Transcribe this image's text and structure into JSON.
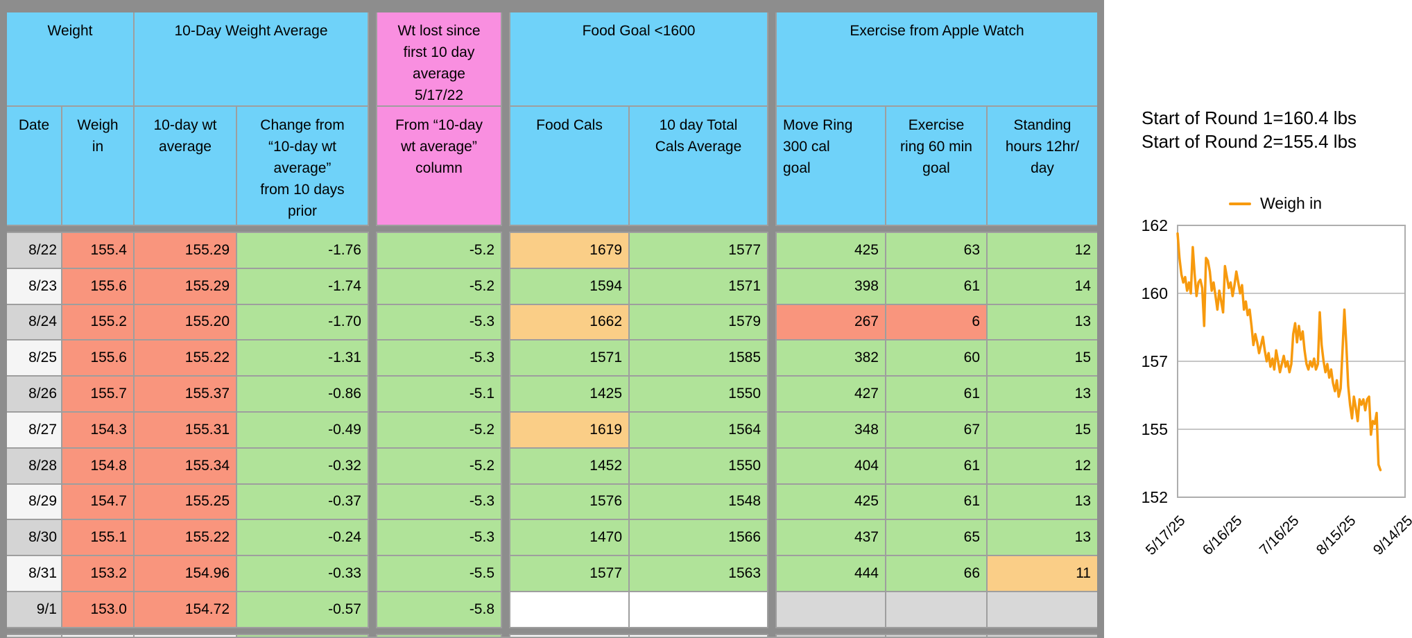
{
  "table": {
    "groups": [
      {
        "label": "Weight"
      },
      {
        "label": "10-Day Weight Average"
      },
      {
        "label": "Wt lost since\nfirst 10 day\naverage\n5/17/22"
      },
      {
        "label": "Food Goal <1600"
      },
      {
        "label": "Exercise from Apple Watch"
      }
    ],
    "columns": [
      {
        "key": "date",
        "label": "Date"
      },
      {
        "key": "weigh-in",
        "label": "Weigh\nin"
      },
      {
        "key": "10day-avg",
        "label": "10-day wt\naverage"
      },
      {
        "key": "change",
        "label": "Change from\n“10-day wt\naverage”\nfrom 10 days\nprior"
      },
      {
        "key": "wt-lost",
        "label": "From “10-day\nwt average”\ncolumn"
      },
      {
        "key": "food-cals",
        "label": "Food Cals"
      },
      {
        "key": "cals-avg",
        "label": "10 day Total\nCals Average"
      },
      {
        "key": "move-ring",
        "label": "Move Ring\n300 cal\ngoal"
      },
      {
        "key": "exercise-ring",
        "label": "Exercise\nring 60 min\ngoal"
      },
      {
        "key": "standing-hours",
        "label": "Standing\nhours 12hr/\nday"
      }
    ],
    "rows": [
      {
        "cells": [
          "8/22",
          "155.4",
          "155.29",
          "-1.76",
          "-5.2",
          "1679",
          "1577",
          "425",
          "63",
          "12"
        ],
        "overrides": {
          "5": "orange"
        }
      },
      {
        "cells": [
          "8/23",
          "155.6",
          "155.29",
          "-1.74",
          "-5.2",
          "1594",
          "1571",
          "398",
          "61",
          "14"
        ],
        "overrides": {}
      },
      {
        "cells": [
          "8/24",
          "155.2",
          "155.20",
          "-1.70",
          "-5.3",
          "1662",
          "1579",
          "267",
          "6",
          "13"
        ],
        "overrides": {
          "5": "orange",
          "7": "red",
          "8": "red"
        }
      },
      {
        "cells": [
          "8/25",
          "155.6",
          "155.22",
          "-1.31",
          "-5.3",
          "1571",
          "1585",
          "382",
          "60",
          "15"
        ],
        "overrides": {}
      },
      {
        "cells": [
          "8/26",
          "155.7",
          "155.37",
          "-0.86",
          "-5.1",
          "1425",
          "1550",
          "427",
          "61",
          "13"
        ],
        "overrides": {}
      },
      {
        "cells": [
          "8/27",
          "154.3",
          "155.31",
          "-0.49",
          "-5.2",
          "1619",
          "1564",
          "348",
          "67",
          "15"
        ],
        "overrides": {
          "5": "orange"
        }
      },
      {
        "cells": [
          "8/28",
          "154.8",
          "155.34",
          "-0.32",
          "-5.2",
          "1452",
          "1550",
          "404",
          "61",
          "12"
        ],
        "overrides": {}
      },
      {
        "cells": [
          "8/29",
          "154.7",
          "155.25",
          "-0.37",
          "-5.3",
          "1576",
          "1548",
          "425",
          "61",
          "13"
        ],
        "overrides": {}
      },
      {
        "cells": [
          "8/30",
          "155.1",
          "155.22",
          "-0.24",
          "-5.3",
          "1470",
          "1566",
          "437",
          "65",
          "13"
        ],
        "overrides": {}
      },
      {
        "cells": [
          "8/31",
          "153.2",
          "154.96",
          "-0.33",
          "-5.5",
          "1577",
          "1563",
          "444",
          "66",
          "11"
        ],
        "overrides": {
          "9": "orange"
        }
      },
      {
        "cells": [
          "9/1",
          "153.0",
          "154.72",
          "-0.57",
          "-5.8",
          "",
          "",
          "",
          "",
          ""
        ],
        "overrides": {
          "5": "white",
          "6": "white",
          "7": "egray",
          "8": "egray",
          "9": "egray"
        }
      }
    ],
    "colors": {
      "header_cyan": "#6FD2F9",
      "header_pink": "#F98FE0",
      "salmon": "#F9957D",
      "green": "#B0E399",
      "orange": "#FACE87",
      "red": "#F9957D",
      "white": "#FFFFFF",
      "egray": "#D8D8D8",
      "date_dark": "#D4D4D4",
      "date_light": "#F5F5F5"
    },
    "sliver_colors": [
      "#F2F2F2",
      "#FFFFFF",
      "#FFFFFF",
      "#B0E399",
      "#B0E399",
      "#FFFFFF",
      "#FFFFFF",
      "#D8D8D8",
      "#D8D8D8",
      "#D8D8D8"
    ]
  },
  "chart_data": {
    "type": "line",
    "legend": "Weigh in",
    "line_color": "#F79A0E",
    "annotations": [
      "Start of Round 1=160.4 lbs",
      "Start of Round 2=155.4 lbs"
    ],
    "x_tick_labels": [
      "5/17/25",
      "6/16/25",
      "7/16/25",
      "8/15/25",
      "9/14/25"
    ],
    "y_tick_labels": [
      "162",
      "160",
      "157",
      "155",
      "152"
    ],
    "y_range": [
      152,
      162
    ],
    "x_axis_span_days": 120,
    "values_start_date": "5/17/25",
    "interval": "daily",
    "grid": true,
    "legend_position": "top",
    "values": [
      161.7,
      160.8,
      160.2,
      159.9,
      160.1,
      159.6,
      159.9,
      159.5,
      161.2,
      160.2,
      159.4,
      159.9,
      160.0,
      159.7,
      158.3,
      160.8,
      160.7,
      160.3,
      159.6,
      159.9,
      159.4,
      158.9,
      159.6,
      159.2,
      158.8,
      160.5,
      160.1,
      159.7,
      159.9,
      159.4,
      159.8,
      160.3,
      159.9,
      159.5,
      159.8,
      158.9,
      159.2,
      158.7,
      158.9,
      158.3,
      157.6,
      158.0,
      157.7,
      157.3,
      157.6,
      157.9,
      157.4,
      157.0,
      157.3,
      156.8,
      157.1,
      156.7,
      157.4,
      157.0,
      156.6,
      156.9,
      157.2,
      156.8,
      157.0,
      156.6,
      156.9,
      158.0,
      158.4,
      157.7,
      158.3,
      157.8,
      158.1,
      157.4,
      156.9,
      156.7,
      157.0,
      156.8,
      157.1,
      156.7,
      156.9,
      158.8,
      157.6,
      157.0,
      156.6,
      156.9,
      156.4,
      156.7,
      156.2,
      155.9,
      156.3,
      155.7,
      156.0,
      157.4,
      158.9,
      157.6,
      156.1,
      155.4,
      154.9,
      155.7,
      155.3,
      154.8,
      155.6,
      155.4,
      155.6,
      155.2,
      155.6,
      155.7,
      154.3,
      154.8,
      154.7,
      155.1,
      153.2,
      153.0
    ]
  }
}
